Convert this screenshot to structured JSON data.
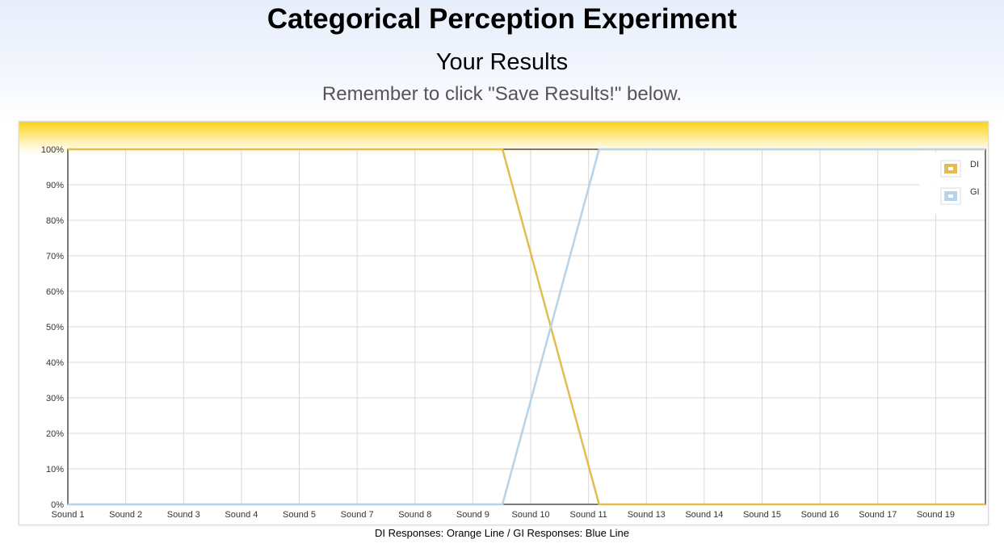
{
  "header": {
    "title": "Categorical Perception Experiment",
    "subtitle": "Your Results",
    "reminder": "Remember to click \"Save Results!\" below."
  },
  "caption": "DI Responses: Orange Line / GI Responses: Blue Line",
  "colors": {
    "DI": "#e2bd50",
    "GI": "#b5d3ea",
    "band_top": "#fcd21a"
  },
  "chart_data": {
    "type": "line",
    "x_tick_labels": [
      "Sound 1",
      "Sound 2",
      "Sound 3",
      "Sound 4",
      "Sound 5",
      "Sound 7",
      "Sound 8",
      "Sound 9",
      "Sound 10",
      "Sound 11",
      "Sound 13",
      "Sound 14",
      "Sound 15",
      "Sound 16",
      "Sound 17",
      "Sound 19"
    ],
    "x": [
      1,
      2,
      3,
      4,
      5,
      6,
      7,
      8,
      9,
      10,
      11,
      12,
      13,
      14,
      15,
      16,
      17,
      18,
      19,
      20
    ],
    "xlim": [
      1,
      20
    ],
    "ylim": [
      0,
      100
    ],
    "y_ticks": [
      0,
      10,
      20,
      30,
      40,
      50,
      60,
      70,
      80,
      90,
      100
    ],
    "y_tick_format": "%",
    "grid": true,
    "legend_position": "top-right",
    "series": [
      {
        "name": "DI",
        "values": [
          100,
          100,
          100,
          100,
          100,
          100,
          100,
          100,
          100,
          100,
          50,
          0,
          0,
          0,
          0,
          0,
          0,
          0,
          0,
          0
        ]
      },
      {
        "name": "GI",
        "values": [
          0,
          0,
          0,
          0,
          0,
          0,
          0,
          0,
          0,
          0,
          50,
          100,
          100,
          100,
          100,
          100,
          100,
          100,
          100,
          100
        ]
      }
    ]
  }
}
